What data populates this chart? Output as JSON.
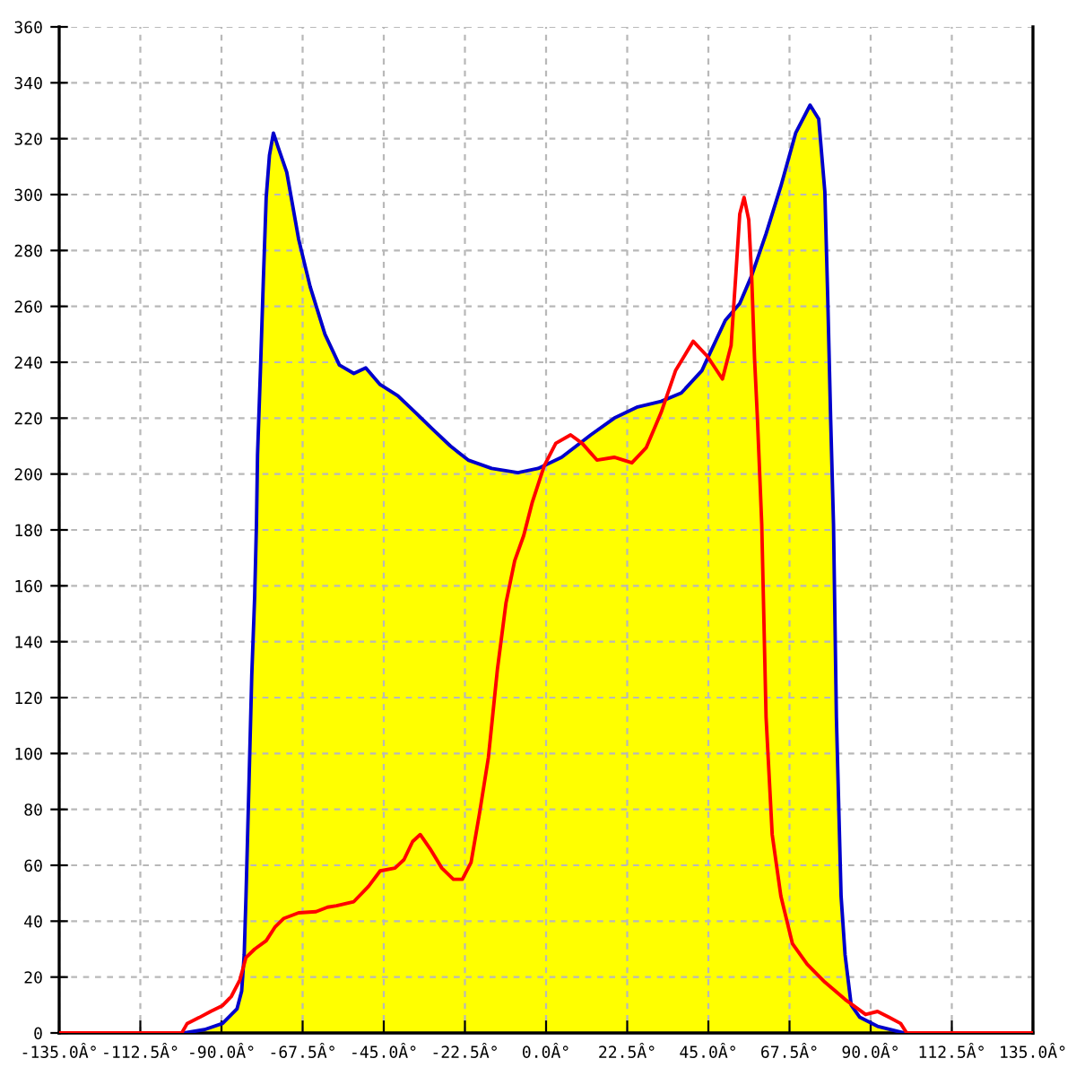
{
  "chart_data": {
    "type": "line",
    "xlim": [
      -135,
      135
    ],
    "xticks": [
      {
        "value": -135,
        "label": "-135.0Â°"
      },
      {
        "value": -112.5,
        "label": "-112.5Â°"
      },
      {
        "value": -90,
        "label": "-90.0Â°"
      },
      {
        "value": -67.5,
        "label": "-67.5Â°"
      },
      {
        "value": -45,
        "label": "-45.0Â°"
      },
      {
        "value": -22.5,
        "label": "-22.5Â°"
      },
      {
        "value": 0,
        "label": "0.0Â°"
      },
      {
        "value": 22.5,
        "label": "22.5Â°"
      },
      {
        "value": 45,
        "label": "45.0Â°"
      },
      {
        "value": 67.5,
        "label": "67.5Â°"
      },
      {
        "value": 90,
        "label": "90.0Â°"
      },
      {
        "value": 112.5,
        "label": "112.5Â°"
      },
      {
        "value": 135,
        "label": "135.0Â°"
      }
    ],
    "ylim": [
      0,
      360
    ],
    "yticks": [
      0,
      20,
      40,
      60,
      80,
      100,
      120,
      140,
      160,
      180,
      200,
      220,
      240,
      260,
      280,
      300,
      320,
      340,
      360
    ],
    "grid": true,
    "series": [
      {
        "type": "area",
        "color": "#ffff00",
        "x": [
          -135,
          -100.3,
          -94.7,
          -89.7,
          -85.7,
          -84.4,
          -83.7,
          -83.2,
          -82.4,
          -81.6,
          -80.8,
          -80.3,
          -80,
          -79.2,
          -78.4,
          -77.6,
          -76.7,
          -75.6,
          -74.3,
          -71.9,
          -68.6,
          -65.4,
          -61.3,
          -57.3,
          -53.3,
          -50,
          -46,
          -41.1,
          -36.2,
          -31.4,
          -26.5,
          -21.6,
          -15.1,
          -7.8,
          -2.2,
          4.3,
          12.4,
          18.9,
          25.4,
          31.9,
          37.5,
          43.2,
          44.8,
          49.7,
          53.7,
          57,
          61,
          65.1,
          69.2,
          73.2,
          75.6,
          77.3,
          78.1,
          78.9,
          79.7,
          80.5,
          81.8,
          82.9,
          84.6,
          87,
          91.9,
          99.2,
          135
        ],
        "values": [
          0,
          0,
          1.2,
          3.4,
          8.6,
          15,
          28,
          49,
          88,
          128,
          156,
          182,
          207,
          237,
          269,
          299,
          314,
          322,
          317,
          308,
          284,
          267,
          250,
          239,
          236,
          238,
          232,
          228,
          222,
          216,
          210,
          205,
          202,
          200.5,
          202,
          206,
          214,
          220,
          224,
          226,
          229,
          237,
          241.5,
          255,
          261,
          271,
          286,
          303,
          322,
          332,
          327,
          301,
          263,
          220,
          182,
          113,
          49,
          28,
          10,
          5.6,
          2.4,
          0,
          0
        ]
      },
      {
        "color": "#0000cc",
        "x": [
          -100.3,
          -94.7,
          -89.7,
          -85.7,
          -84.4,
          -83.7,
          -83.2,
          -82.4,
          -81.6,
          -80.8,
          -80.3,
          -80,
          -79.2,
          -78.4,
          -77.6,
          -76.7,
          -75.6,
          -74.3,
          -71.9,
          -68.6,
          -65.4,
          -61.3,
          -57.3,
          -53.3,
          -50,
          -46,
          -41.1,
          -36.2,
          -31.4,
          -26.5,
          -21.6,
          -15.1,
          -7.8,
          -2.2,
          4.3,
          12.4,
          18.9,
          25.4,
          31.9,
          37.5,
          43.2,
          44.8,
          49.7,
          53.7,
          57,
          61,
          65.1,
          69.2,
          73.2,
          75.6,
          77.3,
          78.1,
          78.9,
          79.7,
          80.5,
          81.8,
          82.9,
          84.6,
          87,
          91.9,
          99.2
        ],
        "values": [
          0,
          1.2,
          3.4,
          8.6,
          15,
          28,
          49,
          88,
          128,
          156,
          182,
          207,
          237,
          269,
          299,
          314,
          322,
          317,
          308,
          284,
          267,
          250,
          239,
          236,
          238,
          232,
          228,
          222,
          216,
          210,
          205,
          202,
          200.5,
          202,
          206,
          214,
          220,
          224,
          226,
          229,
          237,
          241.5,
          255,
          261,
          271,
          286,
          303,
          322,
          332,
          327,
          301,
          263,
          220,
          182,
          113,
          49,
          28,
          10,
          5.6,
          2.4,
          0
        ]
      },
      {
        "color": "#ff0000",
        "x": [
          -135,
          -101,
          -99.5,
          -96.2,
          -93,
          -89.7,
          -87.3,
          -84.9,
          -83.2,
          -80.8,
          -77.6,
          -75.1,
          -72.7,
          -68.6,
          -63.8,
          -60.6,
          -58.1,
          -53.3,
          -49.2,
          -46,
          -41.9,
          -39.4,
          -37,
          -34.9,
          -32.2,
          -28.9,
          -25.7,
          -23.2,
          -20.8,
          -18.4,
          -16,
          -13.5,
          -11.1,
          -8.7,
          -6.2,
          -3.8,
          -0.5,
          2.7,
          6.8,
          10,
          14.1,
          18.9,
          23.8,
          27.8,
          31.9,
          35.9,
          40.8,
          44.8,
          48.9,
          51.3,
          52.6,
          53.7,
          54.9,
          56.2,
          57,
          57.8,
          58.6,
          59.8,
          61,
          62.7,
          65.1,
          68.3,
          72.4,
          77.3,
          82.9,
          88.6,
          91.9,
          95.1,
          98.3,
          100,
          135
        ],
        "values": [
          0,
          0,
          3.4,
          5.5,
          7.7,
          9.8,
          13,
          19,
          27,
          30,
          33,
          38,
          41,
          43,
          43.4,
          45,
          45.5,
          47,
          52.5,
          58,
          59,
          62,
          68.5,
          71,
          66,
          59,
          55,
          55,
          61,
          79,
          98.5,
          130,
          154,
          169,
          178,
          190,
          203,
          211,
          214,
          211,
          205,
          206,
          204,
          209.5,
          222,
          237,
          247.5,
          242,
          234,
          246,
          271,
          293,
          299,
          291,
          271,
          241.5,
          220,
          182,
          113,
          71,
          49,
          32,
          24.6,
          18.2,
          12,
          6.6,
          7.7,
          5.6,
          3.4,
          0,
          0
        ]
      }
    ]
  }
}
